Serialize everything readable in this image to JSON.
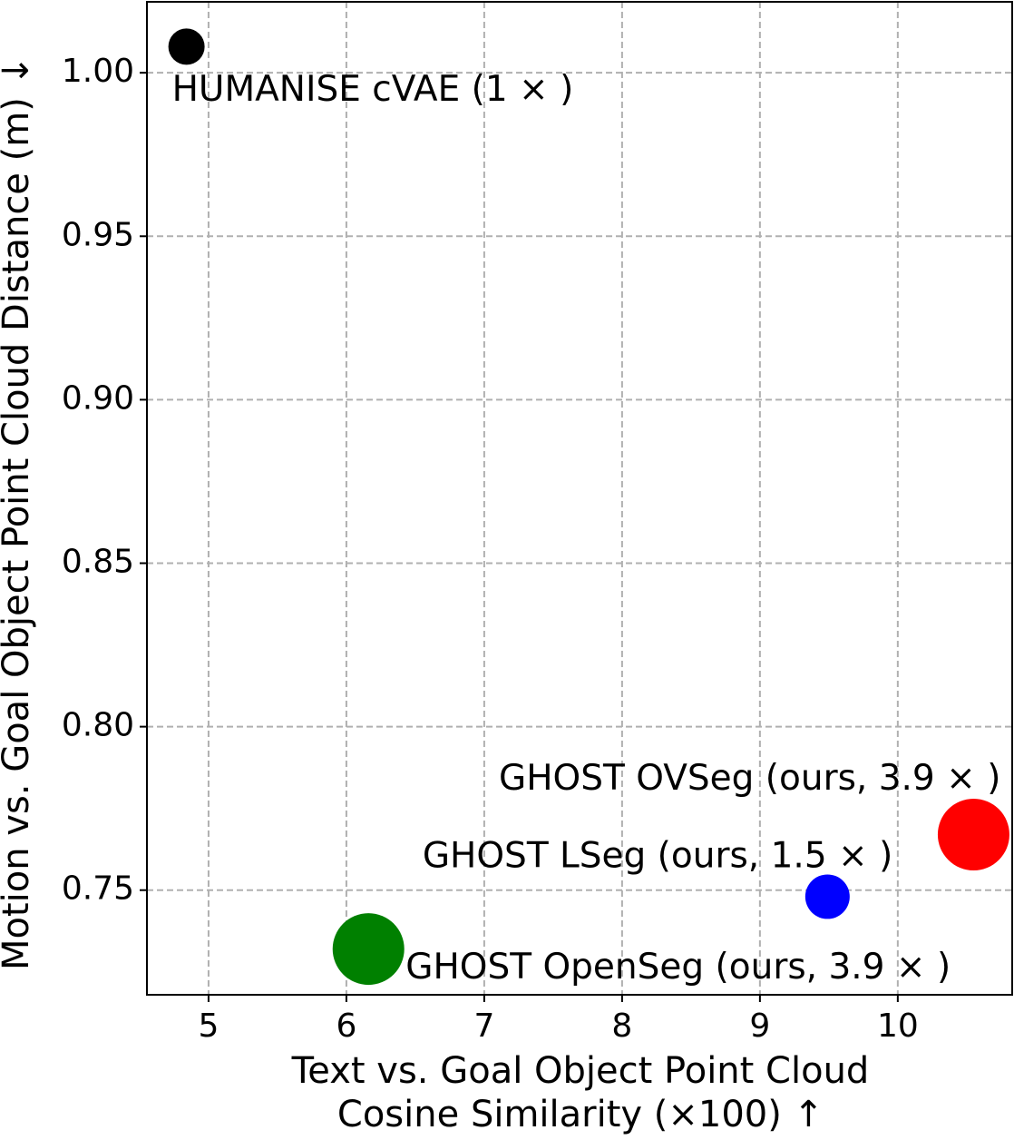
{
  "chart_data": {
    "type": "bubble",
    "xlabel": [
      "Text vs. Goal Object Point Cloud",
      "Cosine Similarity (×100)  ↑"
    ],
    "ylabel": "Motion vs. Goal Object Point Cloud Distance (m)  ↓",
    "xlim": [
      4.553,
      10.83
    ],
    "ylim": [
      0.718,
      1.0217
    ],
    "xticks": [
      5,
      6,
      7,
      8,
      9,
      10
    ],
    "yticks": [
      {
        "value": 0.75,
        "label": "0.75"
      },
      {
        "value": 0.8,
        "label": "0.80"
      },
      {
        "value": 0.85,
        "label": "0.85"
      },
      {
        "value": 0.9,
        "label": "0.90"
      },
      {
        "value": 0.95,
        "label": "0.95"
      },
      {
        "value": 1.0,
        "label": "1.00"
      }
    ],
    "grid": true,
    "points": [
      {
        "label": "HUMANISE cVAE (1 × )",
        "x": 4.84,
        "y": 1.008,
        "size": 1,
        "color": "#000000"
      },
      {
        "label": "GHOST OVSeg (ours, 3.9 × )",
        "x": 10.55,
        "y": 0.767,
        "size": 3.9,
        "color": "#ff0000"
      },
      {
        "label": "GHOST LSeg (ours, 1.5 × )",
        "x": 9.49,
        "y": 0.748,
        "size": 1.5,
        "color": "#0000ff"
      },
      {
        "label": "GHOST OpenSeg (ours, 3.9 × )",
        "x": 6.16,
        "y": 0.732,
        "size": 3.9,
        "color": "#008000"
      }
    ]
  }
}
